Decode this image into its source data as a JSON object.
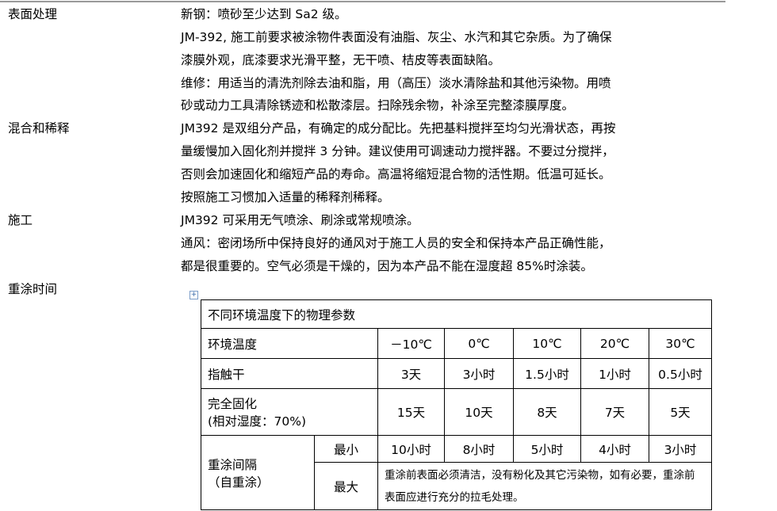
{
  "sections": [
    {
      "label": "表面处理",
      "lines": [
        "新钢：喷砂至少达到 Sa2 级。",
        "JM-392, 施工前要求被涂物件表面没有油脂、灰尘、水汽和其它杂质。为了确保",
        "漆膜外观，底漆要求光滑平整，无干喷、桔皮等表面缺陷。",
        "维修：用适当的清洗剂除去油和脂，用（高压）淡水清除盐和其他污染物。用喷",
        "砂或动力工具清除锈迹和松散漆层。扫除残余物，补涂至完整漆膜厚度。"
      ]
    },
    {
      "label": "混合和稀释",
      "lines": [
        "JM392 是双组分产品，有确定的成分配比。先把基料搅拌至均匀光滑状态，再按",
        "量缓慢加入固化剂并搅拌 3 分钟。建议使用可调速动力搅拌器。不要过分搅拌，",
        "否则会加速固化和缩短产品的寿命。高温将缩短混合物的活性期。低温可延长。",
        "按照施工习惯加入适量的稀释剂稀释。"
      ]
    },
    {
      "label": "施工",
      "lines": [
        "JM392 可采用无气喷涂、刷涂或常规喷涂。",
        "通风：密闭场所中保持良好的通风对于施工人员的安全和保持本产品正确性能，",
        "都是很重要的。空气必须是干燥的，因为本产品不能在湿度超 85%时涂装。"
      ]
    },
    {
      "label": "重涂时间",
      "lines": []
    }
  ],
  "table": {
    "title": "不同环境温度下的物理参数",
    "temp_label": "环境温度",
    "temps": [
      "－10℃",
      "0℃",
      "10℃",
      "20℃",
      "30℃"
    ],
    "touch_label": "指触干",
    "touch": [
      "3天",
      "3小时",
      "1.5小时",
      "1小时",
      "0.5小时"
    ],
    "cure_label1": "完全固化",
    "cure_label2": "(相对湿度：70%)",
    "cure": [
      "15天",
      "10天",
      "8天",
      "7天",
      "5天"
    ],
    "recoat_label1": "重涂间隔",
    "recoat_label2": "（自重涂）",
    "min_label": "最小",
    "min": [
      "10小时",
      "8小时",
      "5小时",
      "4小时",
      "3小时"
    ],
    "max_label": "最大",
    "max_note": "重涂前表面必须清洁，没有粉化及其它污染物，如有必要，重涂前表面应进行充分的拉毛处理。"
  }
}
